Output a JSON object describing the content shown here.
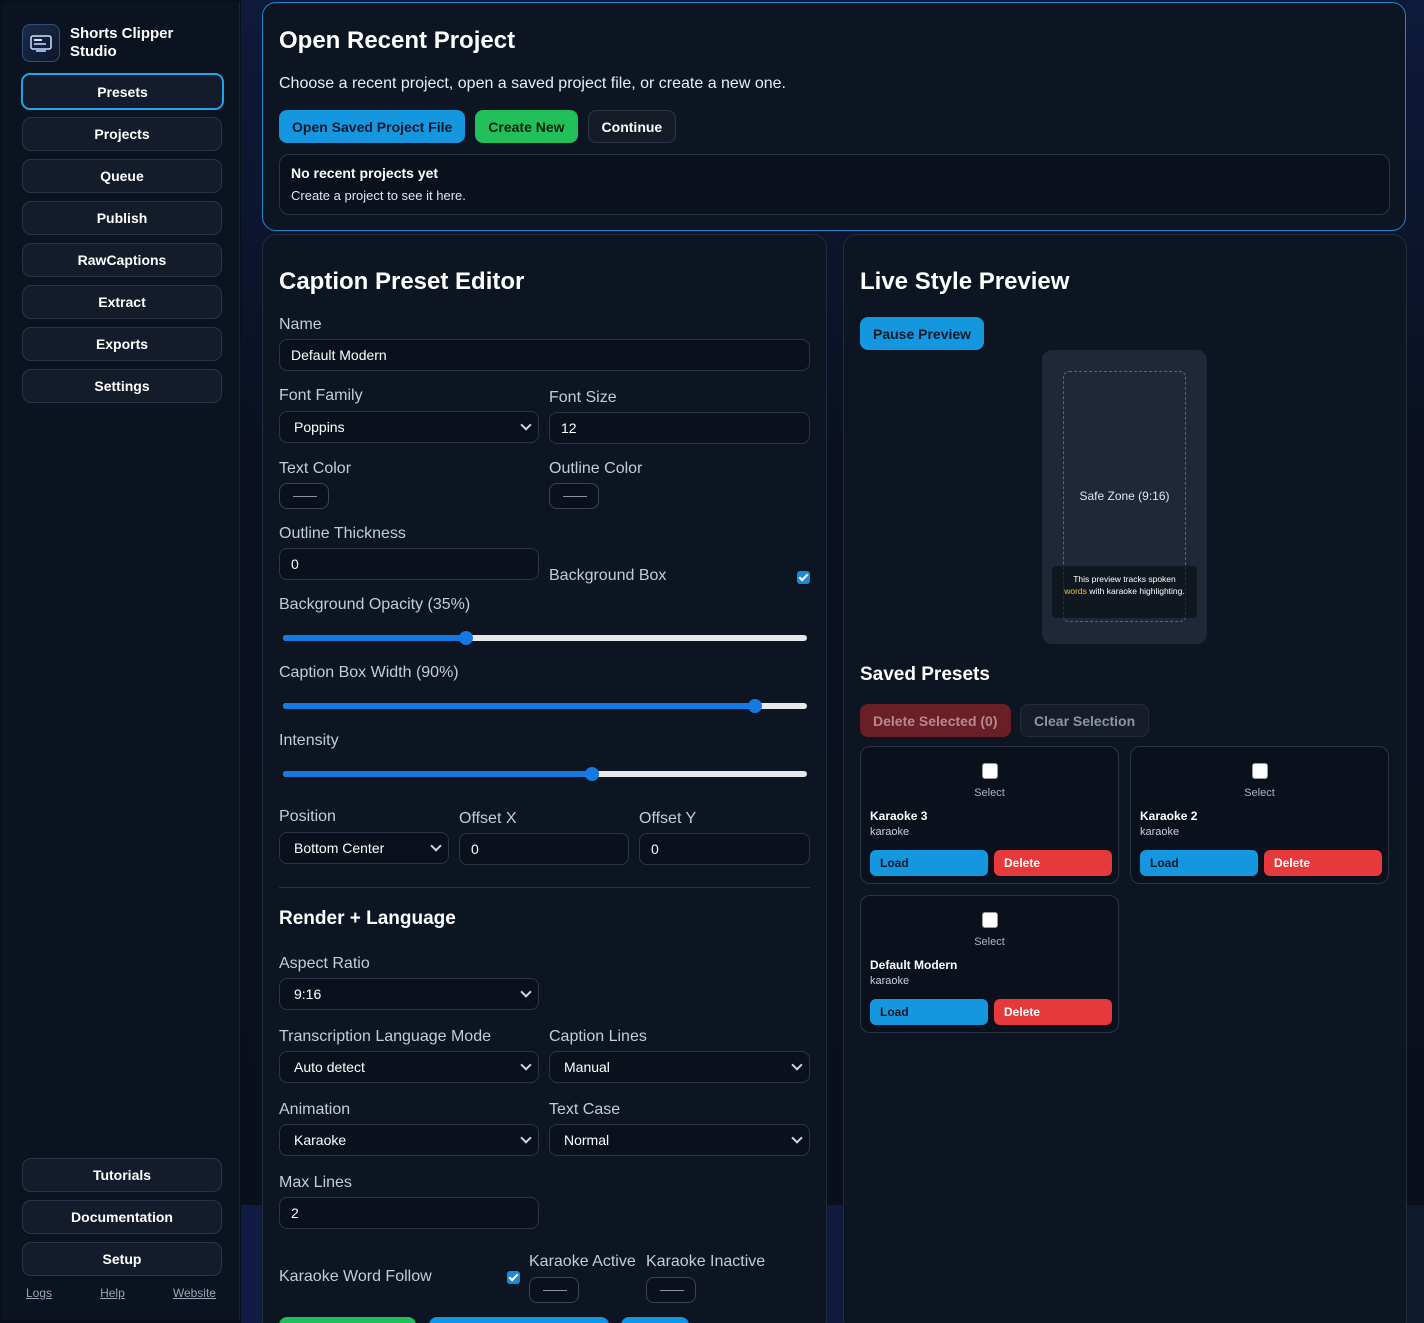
{
  "app": {
    "name": "Shorts Clipper Studio"
  },
  "sidebar": {
    "items": [
      {
        "label": "Presets"
      },
      {
        "label": "Projects"
      },
      {
        "label": "Queue"
      },
      {
        "label": "Publish"
      },
      {
        "label": "RawCaptions"
      },
      {
        "label": "Extract"
      },
      {
        "label": "Exports"
      },
      {
        "label": "Settings"
      }
    ],
    "bottom_items": [
      {
        "label": "Tutorials"
      },
      {
        "label": "Documentation"
      },
      {
        "label": "Setup"
      }
    ],
    "links": {
      "logs": "Logs",
      "help": "Help",
      "website": "Website"
    }
  },
  "recent": {
    "title": "Open Recent Project",
    "description": "Choose a recent project, open a saved project file, or create a new one.",
    "open_saved": "Open Saved Project File",
    "create_new": "Create New",
    "continue": "Continue",
    "empty_title": "No recent projects yet",
    "empty_sub": "Create a project to see it here."
  },
  "editor": {
    "title": "Caption Preset Editor",
    "name_label": "Name",
    "name_value": "Default Modern",
    "font_family_label": "Font Family",
    "font_family_value": "Poppins",
    "font_size_label": "Font Size",
    "font_size_value": "12",
    "text_color_label": "Text Color",
    "outline_color_label": "Outline Color",
    "outline_thickness_label": "Outline Thickness",
    "outline_thickness_value": "0",
    "background_box_label": "Background Box",
    "background_box_checked": true,
    "bg_opacity_label": "Background Opacity (35%)",
    "bg_opacity_value": 0.35,
    "box_width_label": "Caption Box Width (90%)",
    "box_width_value": 0.9,
    "intensity_label": "Intensity",
    "intensity_value": 0.59,
    "position_label": "Position",
    "position_value": "Bottom Center",
    "offset_x_label": "Offset X",
    "offset_x_value": "0",
    "offset_y_label": "Offset Y",
    "offset_y_value": "0",
    "render_title": "Render + Language",
    "aspect_label": "Aspect Ratio",
    "aspect_value": "9:16",
    "lang_mode_label": "Transcription Language Mode",
    "lang_mode_value": "Auto detect",
    "caption_lines_label": "Caption Lines",
    "caption_lines_value": "Manual",
    "animation_label": "Animation",
    "animation_value": "Karaoke",
    "text_case_label": "Text Case",
    "text_case_value": "Normal",
    "max_lines_label": "Max Lines",
    "max_lines_value": "2",
    "karaoke_follow_label": "Karaoke Word Follow",
    "karaoke_follow_checked": true,
    "karaoke_active_label": "Karaoke Active",
    "karaoke_inactive_label": "Karaoke Inactive"
  },
  "preview": {
    "title": "Live Style Preview",
    "pause_button": "Pause Preview",
    "safe_zone": "Safe Zone (9:16)",
    "caption_before": "This preview tracks spoken",
    "caption_highlight": "words",
    "caption_after": "with karaoke highlighting.",
    "highlight_color": "#f2c230"
  },
  "saved": {
    "title": "Saved Presets",
    "delete_selected": "Delete Selected (0)",
    "clear_selection": "Clear Selection",
    "select_label": "Select",
    "load_label": "Load",
    "delete_label": "Delete",
    "presets": [
      {
        "name": "Karaoke 3",
        "style": "karaoke"
      },
      {
        "name": "Karaoke 2",
        "style": "karaoke"
      },
      {
        "name": "Default Modern",
        "style": "karaoke"
      }
    ]
  },
  "colors": {
    "accent": "#1597e0",
    "success": "#22c05a",
    "danger": "#e5393c",
    "slider_fill": "#1479e0"
  }
}
